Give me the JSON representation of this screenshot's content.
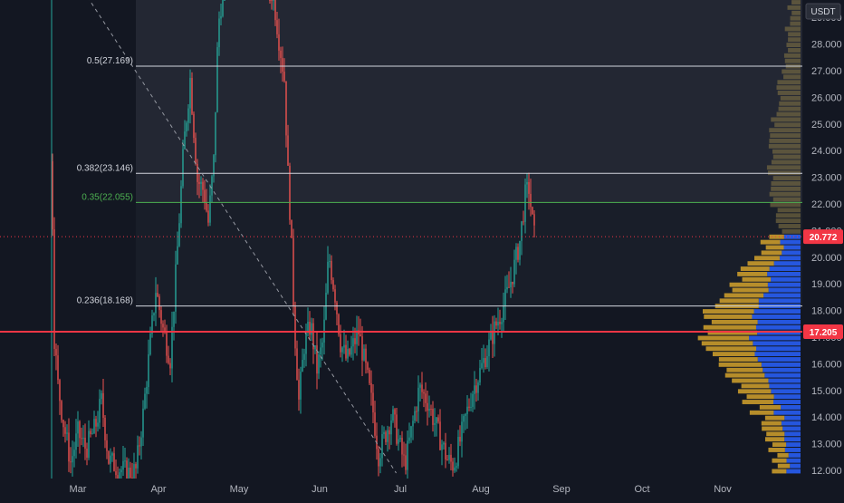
{
  "unit": "USDT",
  "chart_data": {
    "type": "candlestick",
    "y_axis_ticks": [
      12,
      13,
      14,
      15,
      16,
      17,
      18,
      19,
      20,
      21,
      22,
      23,
      24,
      25,
      26,
      27,
      28,
      29
    ],
    "y_axis_tick_labels": [
      "12.000",
      "13.000",
      "14.000",
      "15.000",
      "16.000",
      "17.000",
      "18.000",
      "19.000",
      "20.000",
      "21.000",
      "22.000",
      "23.000",
      "24.000",
      "25.000",
      "26.000",
      "27.000",
      "28.000",
      "29.000"
    ],
    "ylim": [
      11.8,
      29.6
    ],
    "x_axis_labels": [
      "Mar",
      "Apr",
      "May",
      "Jun",
      "Jul",
      "Aug",
      "Sep",
      "Oct",
      "Nov"
    ],
    "fib_levels": [
      {
        "label": "0.5(27.169)",
        "value": 27.169,
        "color": "#d1d4dc"
      },
      {
        "label": "0.382(23.146)",
        "value": 23.146,
        "color": "#d1d4dc"
      },
      {
        "label": "0.35(22.055)",
        "value": 22.055,
        "color": "#4caf50"
      },
      {
        "label": "0.236(18.168)",
        "value": 18.168,
        "color": "#d1d4dc"
      }
    ],
    "support_line": {
      "value": 17.205,
      "color": "#f23645"
    },
    "price_tags": [
      {
        "label": "20.772",
        "value": 20.772,
        "color": "#f23645"
      },
      {
        "label": "17.205",
        "value": 17.205,
        "color": "#f23645"
      }
    ],
    "trend_line": {
      "from": {
        "month": 3.07,
        "price": 30.0
      },
      "to": {
        "month": 6.95,
        "price": 11.9
      }
    },
    "last_price": 20.772,
    "colors": {
      "up": "#26a69a",
      "down": "#ef5350",
      "background": "#131722",
      "zone": "#2a2e39",
      "profile_buy": "#2962ff",
      "profile_sell": "#d4a22c"
    }
  }
}
